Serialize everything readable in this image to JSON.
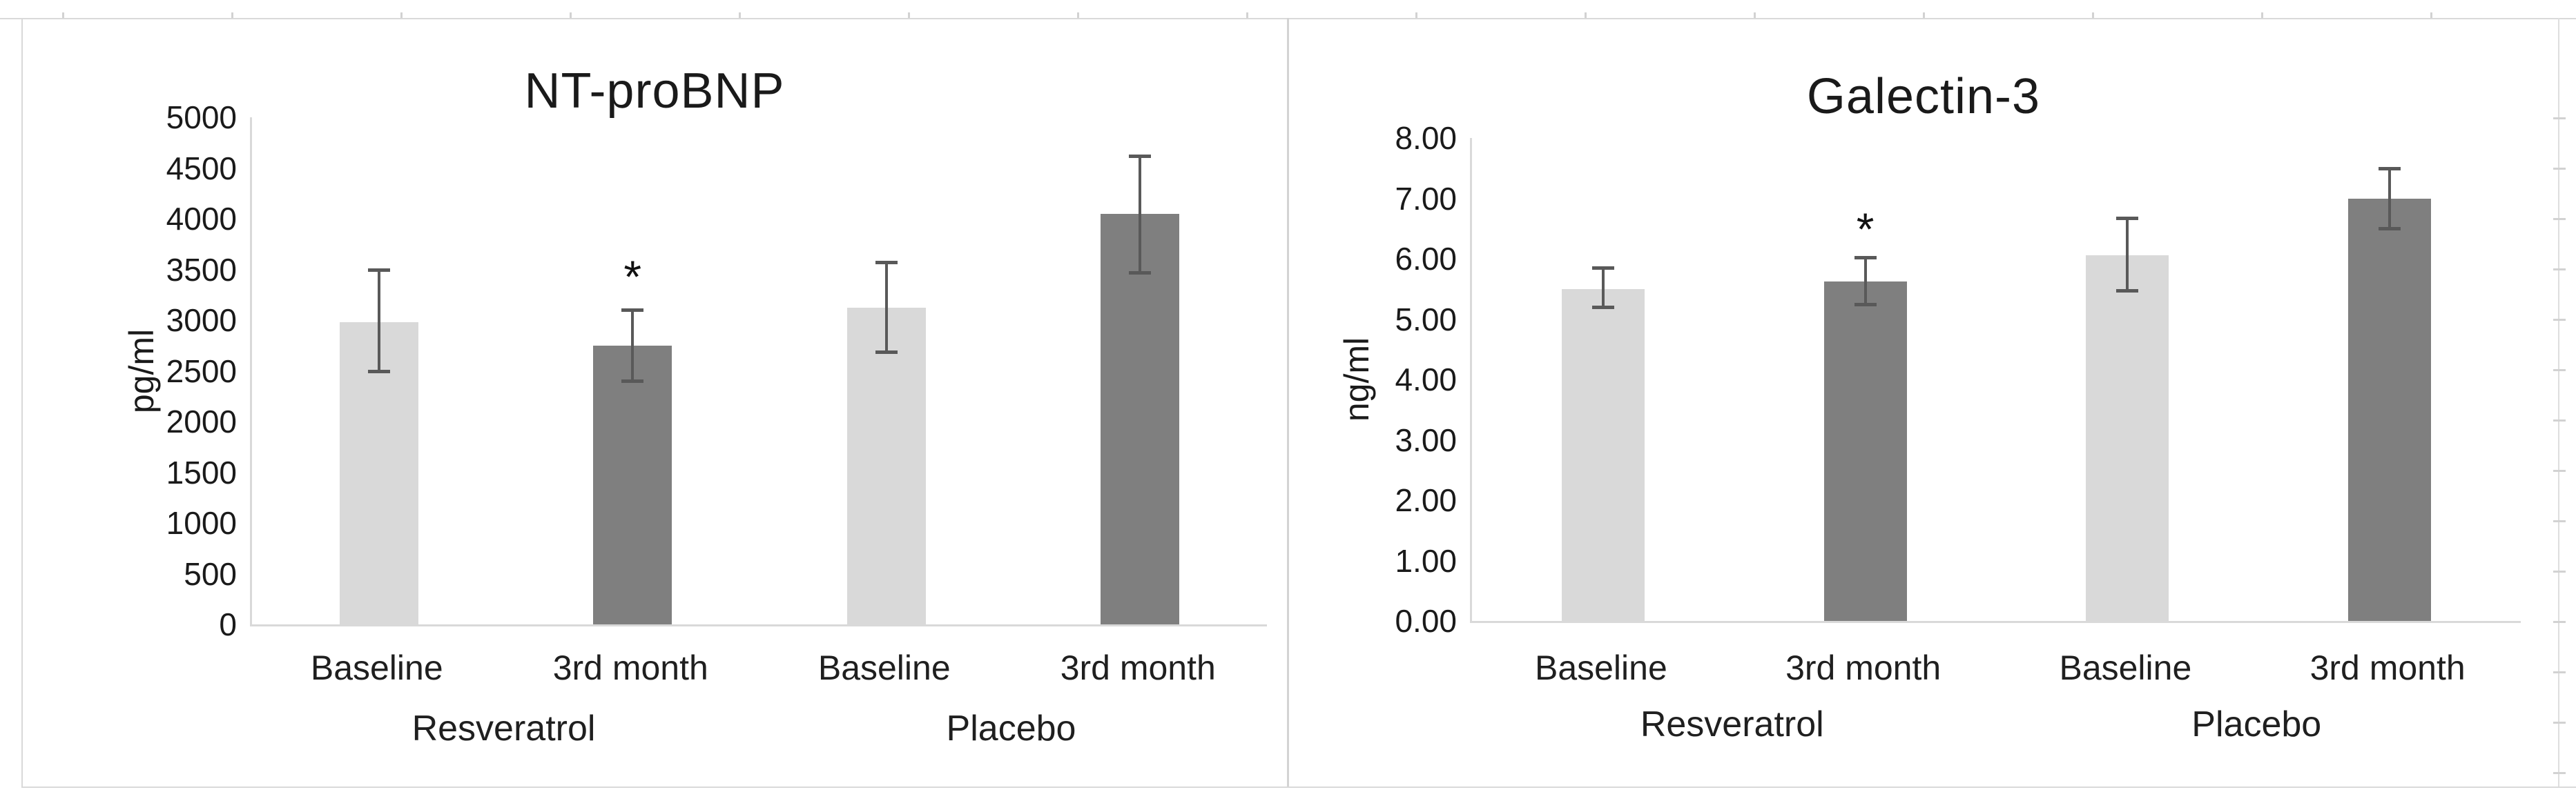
{
  "figure": {
    "background": "#ffffff",
    "frame_color": "#d9d9d9",
    "axis_line_color": "#d9d9d9",
    "text_color": "#1a1a1a",
    "error_bar_color": "#595959",
    "bar_color_light": "#d9d9d9",
    "bar_color_dark": "#7f7f7f",
    "significance_marker": "*"
  },
  "chart_data": [
    {
      "type": "bar",
      "title": "NT-proBNP",
      "ylabel": "pg/ml",
      "xlabel": "",
      "ylim": [
        0,
        5000
      ],
      "ytick_step": 500,
      "ytick_labels": [
        "0",
        "500",
        "1000",
        "1500",
        "2000",
        "2500",
        "3000",
        "3500",
        "4000",
        "4500",
        "5000"
      ],
      "categories": [
        "Baseline",
        "3rd month",
        "Baseline",
        "3rd month"
      ],
      "group_labels": [
        "Resveratrol",
        "Placebo"
      ],
      "values": [
        2980,
        2750,
        3120,
        4050
      ],
      "error_low": [
        2500,
        2400,
        2690,
        3470
      ],
      "error_high": [
        3500,
        3100,
        3570,
        4620
      ],
      "bar_palette": [
        "light",
        "dark",
        "light",
        "dark"
      ],
      "annotations": [
        {
          "category_index": 1,
          "text": "*"
        }
      ],
      "grid": false,
      "legend": "none"
    },
    {
      "type": "bar",
      "title": "Galectin-3",
      "ylabel": "ng/ml",
      "xlabel": "",
      "ylim": [
        0,
        8
      ],
      "ytick_step": 1,
      "ytick_labels": [
        "0.00",
        "1.00",
        "2.00",
        "3.00",
        "4.00",
        "5.00",
        "6.00",
        "7.00",
        "8.00"
      ],
      "categories": [
        "Baseline",
        "3rd month",
        "Baseline",
        "3rd month"
      ],
      "group_labels": [
        "Resveratrol",
        "Placebo"
      ],
      "values": [
        5.5,
        5.62,
        6.06,
        7.0
      ],
      "error_low": [
        5.2,
        5.25,
        5.48,
        6.5
      ],
      "error_high": [
        5.85,
        6.02,
        6.67,
        7.5
      ],
      "bar_palette": [
        "light",
        "dark",
        "light",
        "dark"
      ],
      "annotations": [
        {
          "category_index": 1,
          "text": "*"
        }
      ],
      "grid": false,
      "legend": "none"
    }
  ]
}
